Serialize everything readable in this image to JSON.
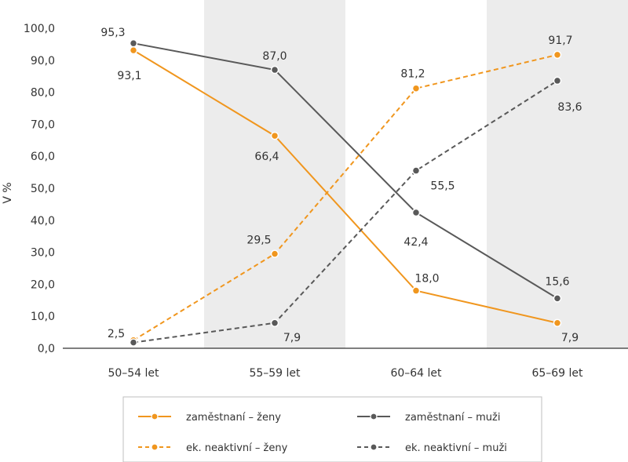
{
  "chart_data": {
    "type": "line",
    "ylabel": "V %",
    "ylim": [
      0,
      100
    ],
    "y_ticks": [
      "0,0",
      "10,0",
      "20,0",
      "30,0",
      "40,0",
      "50,0",
      "60,0",
      "70,0",
      "80,0",
      "90,0",
      "100,0"
    ],
    "categories": [
      "50–54 let",
      "55–59 let",
      "60–64 let",
      "65–69 let"
    ],
    "shaded_categories": [
      1,
      3
    ],
    "legend_position": "bottom",
    "series": [
      {
        "name": "zaměstnaní – ženy",
        "color": "#f0961e",
        "dashed": false,
        "values": [
          93.1,
          66.4,
          18.0,
          7.9
        ],
        "labels": [
          "93,1",
          "66,4",
          "18,0",
          "7,9"
        ]
      },
      {
        "name": "zaměstnaní – muži",
        "color": "#595959",
        "dashed": false,
        "values": [
          95.3,
          87.0,
          42.4,
          15.6
        ],
        "labels": [
          "95,3",
          "87,0",
          "42,4",
          "15,6"
        ]
      },
      {
        "name": "ek. neaktivní – ženy",
        "color": "#f0961e",
        "dashed": true,
        "values": [
          2.5,
          29.5,
          81.2,
          91.7
        ],
        "labels": [
          "2,5",
          "29,5",
          "81,2",
          "91,7"
        ]
      },
      {
        "name": "ek. neaktivní – muži",
        "color": "#595959",
        "dashed": true,
        "values": [
          1.8,
          7.9,
          55.5,
          83.6
        ],
        "labels": [
          "",
          "7,9",
          "55,5",
          "83,6"
        ]
      }
    ]
  }
}
